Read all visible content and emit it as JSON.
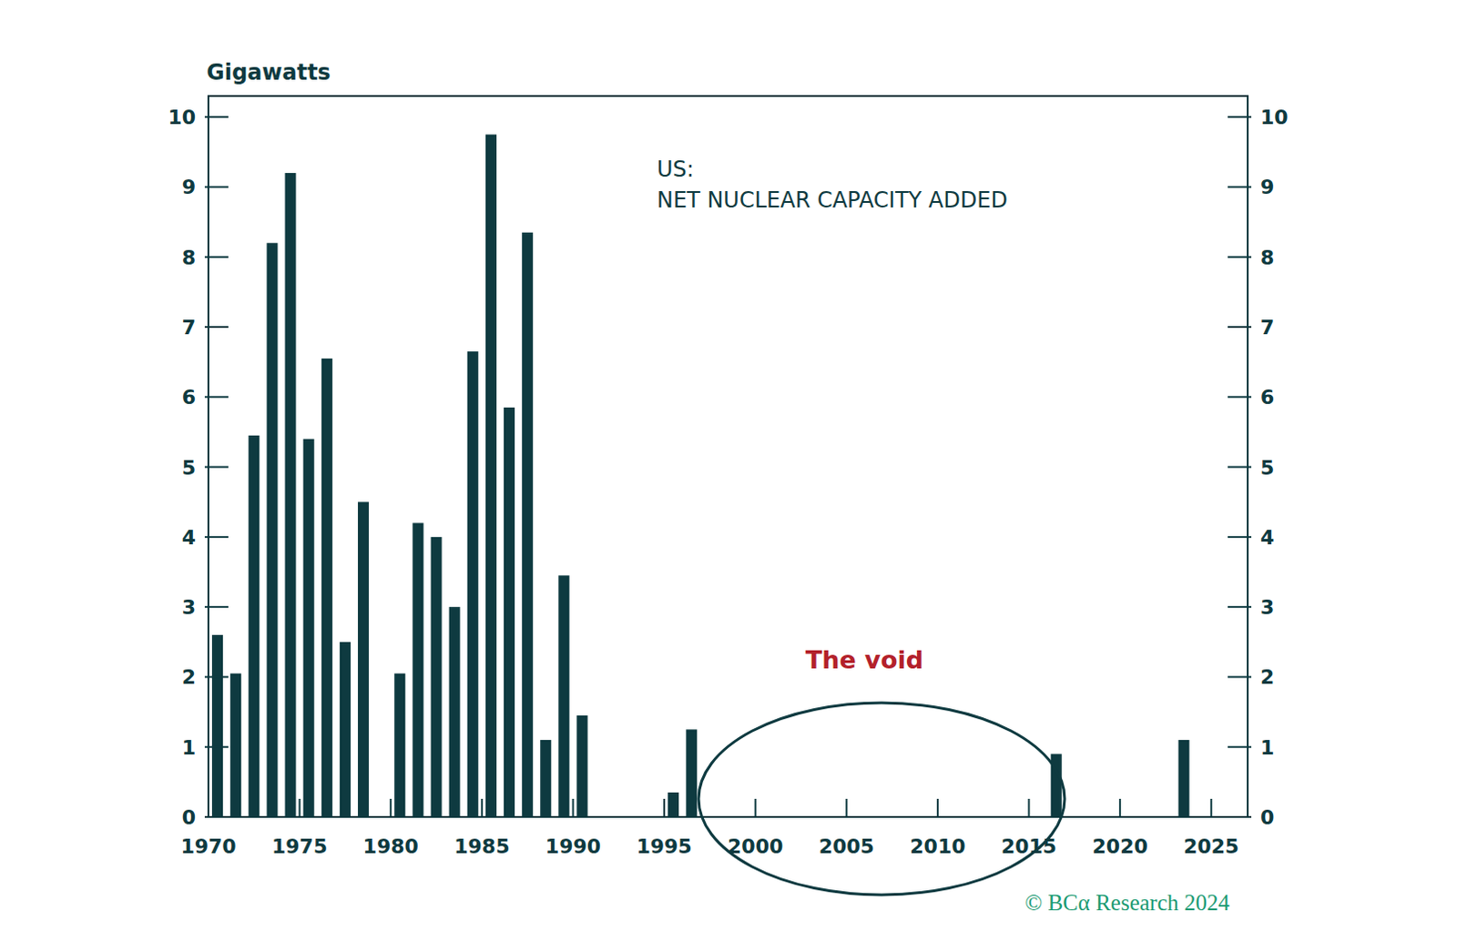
{
  "chart_data": {
    "type": "bar",
    "title": "US:",
    "subtitle": "NET NUCLEAR CAPACITY ADDED",
    "y_label": "Gigawatts",
    "annotations": [
      "The void"
    ],
    "source": "© BCα Research 2024",
    "color": "#0e3a40",
    "x": [
      1970,
      1971,
      1972,
      1973,
      1974,
      1975,
      1976,
      1977,
      1978,
      1979,
      1980,
      1981,
      1982,
      1983,
      1984,
      1985,
      1986,
      1987,
      1988,
      1989,
      1990,
      1991,
      1992,
      1993,
      1994,
      1995,
      1996,
      1997,
      1998,
      1999,
      2000,
      2001,
      2002,
      2003,
      2004,
      2005,
      2006,
      2007,
      2008,
      2009,
      2010,
      2011,
      2012,
      2013,
      2014,
      2015,
      2016,
      2017,
      2018,
      2019,
      2020,
      2021,
      2022,
      2023,
      2024
    ],
    "values": [
      2.6,
      2.05,
      5.45,
      8.2,
      9.2,
      5.4,
      6.55,
      2.5,
      4.5,
      0,
      2.05,
      4.2,
      4.0,
      3.0,
      6.65,
      9.75,
      5.85,
      8.35,
      1.1,
      3.45,
      1.45,
      0,
      0,
      0,
      0,
      0.35,
      1.25,
      0,
      0,
      0,
      0,
      0,
      0,
      0,
      0,
      0,
      0,
      0,
      0,
      0,
      0,
      0,
      0,
      0,
      0,
      0,
      0.9,
      0,
      0,
      0,
      0,
      0,
      0,
      1.1,
      0
    ],
    "xlim": [
      1970,
      2027
    ],
    "xticks": [
      1970,
      1975,
      1980,
      1985,
      1990,
      1995,
      2000,
      2005,
      2010,
      2015,
      2020,
      2025
    ],
    "ylim": [
      0,
      10.3
    ],
    "yticks": [
      0,
      1,
      2,
      3,
      4,
      5,
      6,
      7,
      8,
      9,
      10
    ],
    "y2lim": [
      0,
      10.3
    ],
    "y2ticks": [
      0,
      1,
      2,
      3,
      4,
      5,
      6,
      7,
      8,
      9,
      10
    ],
    "grid": false
  }
}
